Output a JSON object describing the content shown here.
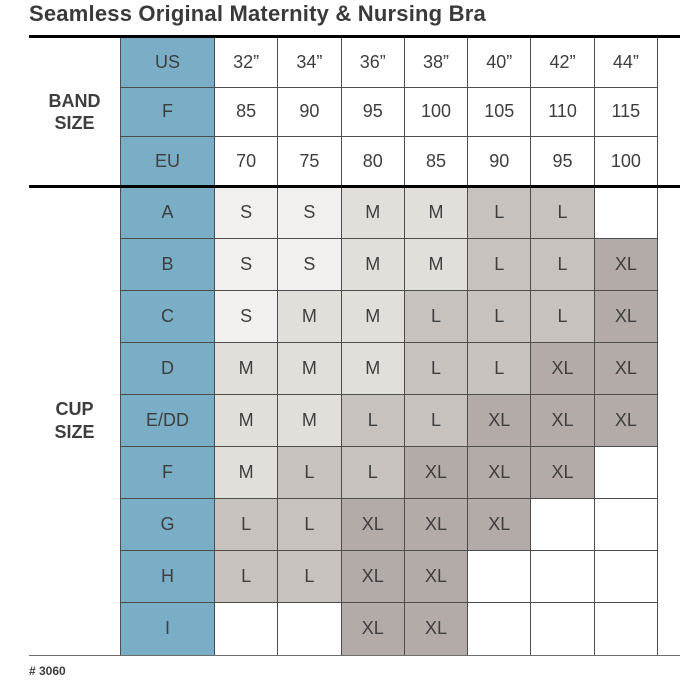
{
  "title": "Seamless Original Maternity & Nursing Bra",
  "footnote": "# 3060",
  "colors": {
    "header_teal": "#79aec6",
    "border": "#4d4d4d",
    "text": "#3e3e3e",
    "S": "#f2f0ee",
    "M": "#e2dfda",
    "L": "#c8c2be",
    "XL": "#b3aba8",
    "empty": "#ffffff"
  },
  "chart_data": {
    "type": "table",
    "title": "Seamless Original Maternity & Nursing Bra",
    "band_size": {
      "label": "BAND SIZE",
      "rows": [
        {
          "unit": "US",
          "values": [
            "32”",
            "34”",
            "36”",
            "38”",
            "40”",
            "42”",
            "44”"
          ]
        },
        {
          "unit": "F",
          "values": [
            "85",
            "90",
            "95",
            "100",
            "105",
            "110",
            "115"
          ]
        },
        {
          "unit": "EU",
          "values": [
            "70",
            "75",
            "80",
            "85",
            "90",
            "95",
            "100"
          ]
        }
      ]
    },
    "cup_size": {
      "label": "CUP SIZE",
      "rows": [
        {
          "cup": "A",
          "values": [
            "S",
            "S",
            "M",
            "M",
            "L",
            "L",
            ""
          ]
        },
        {
          "cup": "B",
          "values": [
            "S",
            "S",
            "M",
            "M",
            "L",
            "L",
            "XL"
          ]
        },
        {
          "cup": "C",
          "values": [
            "S",
            "M",
            "M",
            "L",
            "L",
            "L",
            "XL"
          ]
        },
        {
          "cup": "D",
          "values": [
            "M",
            "M",
            "M",
            "L",
            "L",
            "XL",
            "XL"
          ]
        },
        {
          "cup": "E/DD",
          "values": [
            "M",
            "M",
            "L",
            "L",
            "XL",
            "XL",
            "XL"
          ]
        },
        {
          "cup": "F",
          "values": [
            "M",
            "L",
            "L",
            "XL",
            "XL",
            "XL",
            ""
          ]
        },
        {
          "cup": "G",
          "values": [
            "L",
            "L",
            "XL",
            "XL",
            "XL",
            "",
            ""
          ]
        },
        {
          "cup": "H",
          "values": [
            "L",
            "L",
            "XL",
            "XL",
            "",
            "",
            ""
          ]
        },
        {
          "cup": "I",
          "values": [
            "",
            "",
            "XL",
            "XL",
            "",
            "",
            ""
          ]
        }
      ]
    }
  }
}
